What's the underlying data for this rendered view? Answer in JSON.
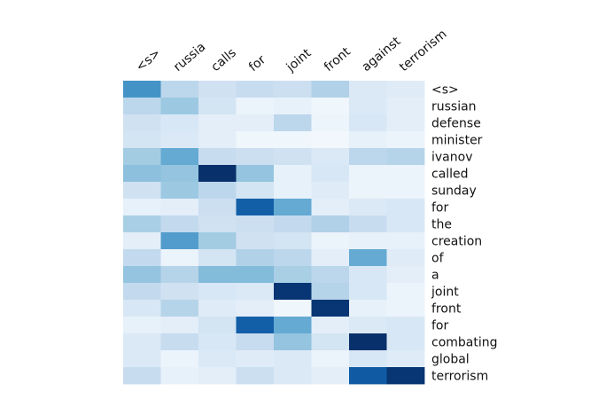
{
  "chart_data": {
    "type": "heatmap",
    "title": "",
    "x_labels": [
      "<s>",
      "russia",
      "calls",
      "for",
      "joint",
      "front",
      "against",
      "terrorism"
    ],
    "y_labels": [
      "<s>",
      "russian",
      "defense",
      "minister",
      "ivanov",
      "called",
      "sunday",
      "for",
      "the",
      "creation",
      "of",
      "a",
      "joint",
      "front",
      "for",
      "combating",
      "global",
      "terrorism"
    ],
    "x_axis_position": "top",
    "y_axis_position": "right",
    "colormap": "Blues",
    "value_range": [
      0,
      1
    ],
    "values": [
      [
        0.62,
        0.28,
        0.2,
        0.24,
        0.22,
        0.32,
        0.14,
        0.12
      ],
      [
        0.28,
        0.38,
        0.18,
        0.06,
        0.08,
        0.04,
        0.14,
        0.1
      ],
      [
        0.2,
        0.16,
        0.1,
        0.1,
        0.28,
        0.05,
        0.16,
        0.1
      ],
      [
        0.18,
        0.14,
        0.1,
        0.04,
        0.04,
        0.03,
        0.08,
        0.06
      ],
      [
        0.36,
        0.52,
        0.24,
        0.22,
        0.2,
        0.14,
        0.28,
        0.3
      ],
      [
        0.42,
        0.4,
        1.0,
        0.4,
        0.08,
        0.16,
        0.06,
        0.06
      ],
      [
        0.2,
        0.38,
        0.28,
        0.18,
        0.08,
        0.12,
        0.06,
        0.06
      ],
      [
        0.08,
        0.1,
        0.22,
        0.82,
        0.52,
        0.1,
        0.14,
        0.16
      ],
      [
        0.34,
        0.26,
        0.2,
        0.22,
        0.26,
        0.32,
        0.24,
        0.16
      ],
      [
        0.1,
        0.58,
        0.36,
        0.2,
        0.18,
        0.06,
        0.08,
        0.08
      ],
      [
        0.26,
        0.06,
        0.18,
        0.32,
        0.28,
        0.1,
        0.52,
        0.12
      ],
      [
        0.4,
        0.3,
        0.44,
        0.44,
        0.34,
        0.28,
        0.16,
        0.1
      ],
      [
        0.26,
        0.2,
        0.16,
        0.14,
        0.98,
        0.3,
        0.16,
        0.06
      ],
      [
        0.16,
        0.3,
        0.12,
        0.1,
        0.04,
        0.98,
        0.08,
        0.06
      ],
      [
        0.08,
        0.1,
        0.18,
        0.82,
        0.52,
        0.1,
        0.14,
        0.16
      ],
      [
        0.14,
        0.24,
        0.16,
        0.24,
        0.4,
        0.18,
        1.0,
        0.16
      ],
      [
        0.14,
        0.06,
        0.14,
        0.12,
        0.14,
        0.06,
        0.16,
        0.12
      ],
      [
        0.24,
        0.08,
        0.1,
        0.22,
        0.14,
        0.1,
        0.84,
        0.98
      ]
    ]
  }
}
